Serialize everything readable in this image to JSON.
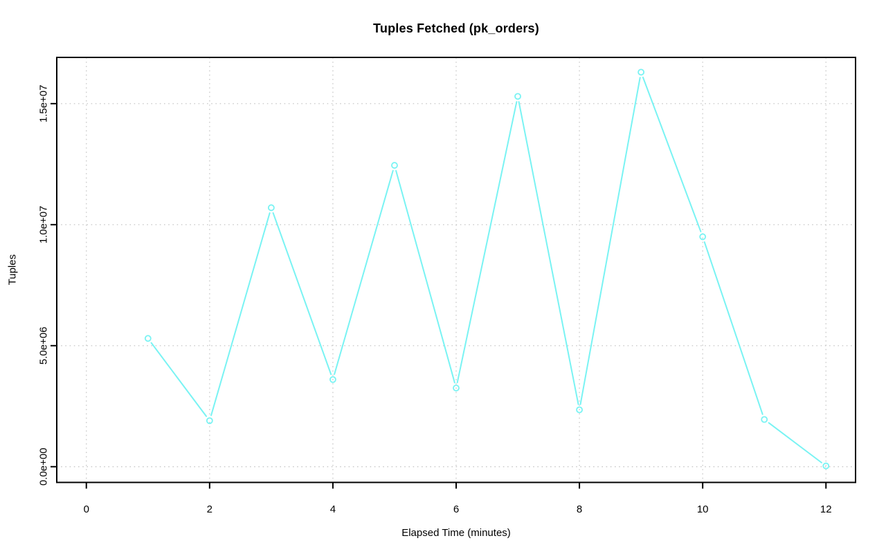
{
  "chart_data": {
    "type": "line",
    "title": "Tuples Fetched (pk_orders)",
    "xlabel": "Elapsed Time (minutes)",
    "ylabel": "Tuples",
    "x": [
      1,
      2,
      3,
      4,
      5,
      6,
      7,
      8,
      9,
      10,
      11,
      12
    ],
    "values": [
      5300000,
      1900000,
      10700000,
      3600000,
      12450000,
      3250000,
      15300000,
      2350000,
      16300000,
      9500000,
      1950000,
      30000
    ],
    "series": [
      {
        "name": "tuples_fetched",
        "values": [
          5300000,
          1900000,
          10700000,
          3600000,
          12450000,
          3250000,
          15300000,
          2350000,
          16300000,
          9500000,
          1950000,
          30000
        ]
      }
    ],
    "x_ticks": [
      0,
      2,
      4,
      6,
      8,
      10,
      12
    ],
    "x_tick_labels": [
      "0",
      "2",
      "4",
      "6",
      "8",
      "10",
      "12"
    ],
    "y_ticks": [
      0,
      5000000,
      10000000,
      15000000
    ],
    "y_tick_labels": [
      "0.0e+00",
      "5.0e+06",
      "1.0e+07",
      "1.5e+07"
    ],
    "xlim": [
      -0.48,
      12.48
    ],
    "ylim": [
      -650000,
      16910000
    ],
    "grid": "dotted",
    "legend": "none",
    "marker": "open-circle",
    "line_style": "solid-with-marker-gaps",
    "series_color": "#79f3f3",
    "grid_color": "#cccccc",
    "axis_color": "#000000",
    "background": "#ffffff"
  }
}
